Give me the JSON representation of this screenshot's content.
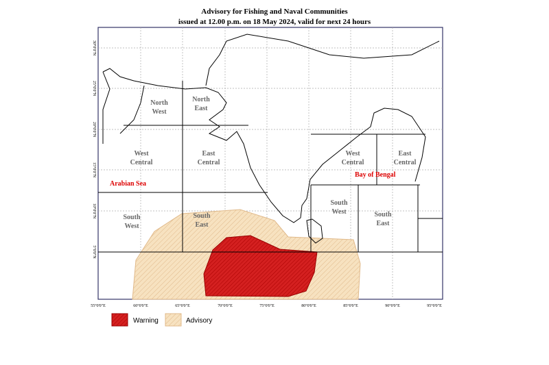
{
  "header": {
    "title": "Advisory for Fishing and Naval Communities",
    "subtitle": "issued at 12.00 p.m.  on 18 May 2024, valid for next 24 hours"
  },
  "map": {
    "lon_labels": [
      "55°0'0\"E",
      "60°0'0\"E",
      "65°0'0\"E",
      "70°0'0\"E",
      "75°0'0\"E",
      "80°0'0\"E",
      "85°0'0\"E",
      "90°0'0\"E",
      "95°0'0\"E"
    ],
    "lat_labels": [
      "30°0'0\"N",
      "25°0'0\"N",
      "20°0'0\"N",
      "15°0'0\"N",
      "10°0'0\"N",
      "5°0'0\"N"
    ],
    "regions": [
      {
        "label": [
          "North",
          "West"
        ]
      },
      {
        "label": [
          "North",
          "East"
        ]
      },
      {
        "label": [
          "West",
          "Central"
        ]
      },
      {
        "label": [
          "East",
          "Central"
        ]
      },
      {
        "label": [
          "South",
          "West"
        ]
      },
      {
        "label": [
          "South",
          "East"
        ]
      },
      {
        "label": [
          "West",
          "Central"
        ]
      },
      {
        "label": [
          "East",
          "Central"
        ]
      },
      {
        "label": [
          "South",
          "West"
        ]
      },
      {
        "label": [
          "South",
          "East"
        ]
      }
    ],
    "seas": [
      "Arabian Sea",
      "Bay of Bengal"
    ]
  },
  "legend": [
    "Warning",
    "Advisory"
  ]
}
